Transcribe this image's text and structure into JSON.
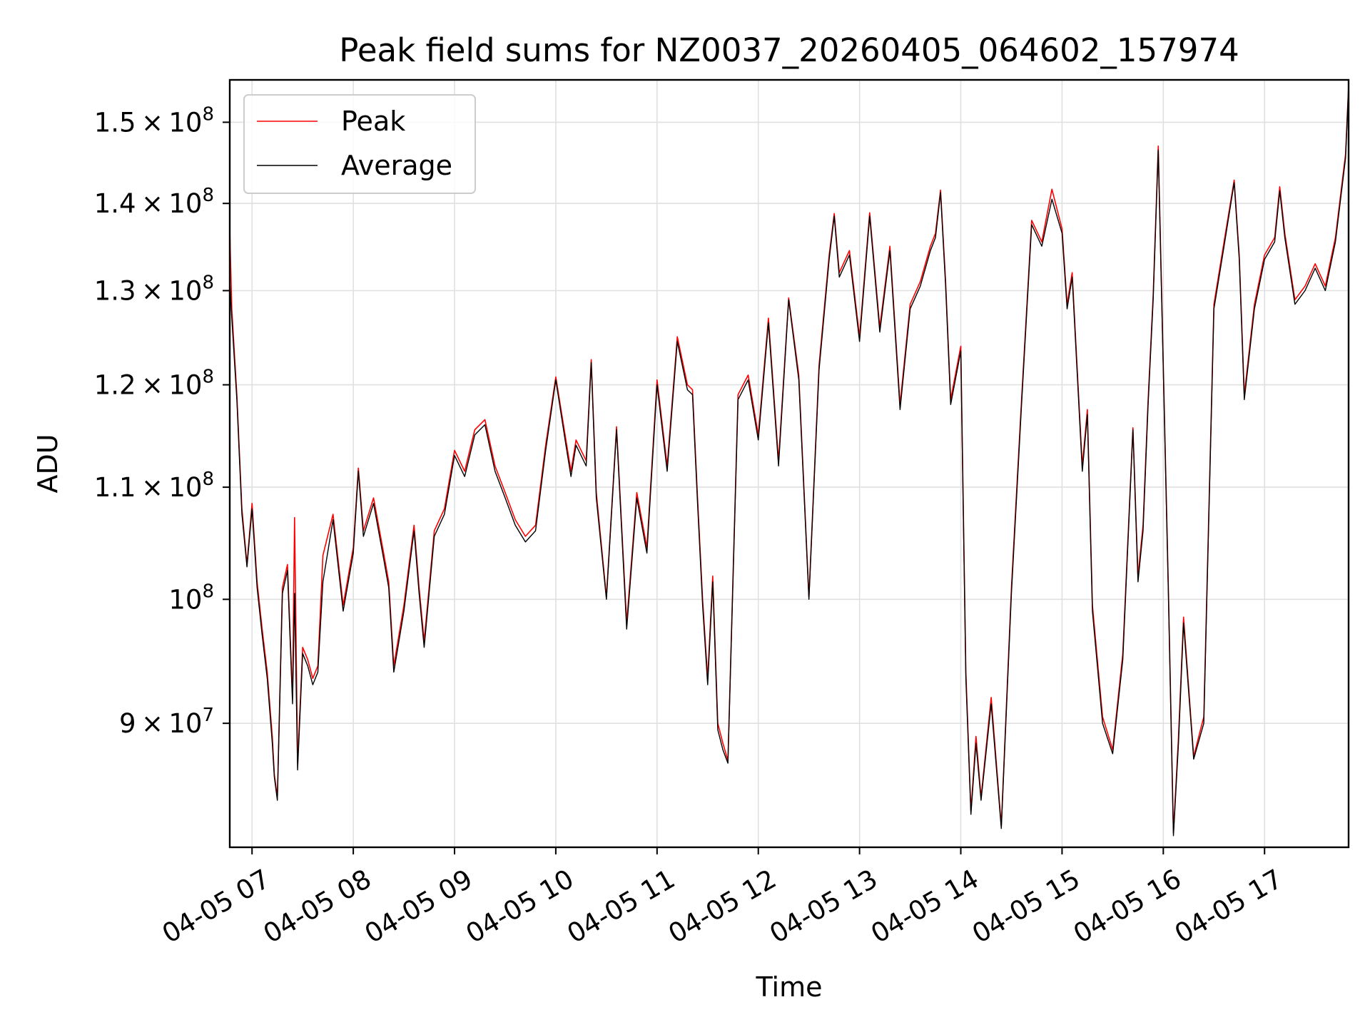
{
  "chart_data": {
    "type": "line",
    "title": "Peak field sums for NZ0037_20260405_064602_157974",
    "xlabel": "Time",
    "ylabel": "ADU",
    "y_scale": "log",
    "x_unit": "hours since 2026-04-05 00:00",
    "xlim": [
      6.78,
      17.83
    ],
    "ylim": [
      81000000,
      155500000
    ],
    "grid": true,
    "legend_position": "upper-left",
    "x_ticks": [
      {
        "value": 7,
        "label": "04-05 07"
      },
      {
        "value": 8,
        "label": "04-05 08"
      },
      {
        "value": 9,
        "label": "04-05 09"
      },
      {
        "value": 10,
        "label": "04-05 10"
      },
      {
        "value": 11,
        "label": "04-05 11"
      },
      {
        "value": 12,
        "label": "04-05 12"
      },
      {
        "value": 13,
        "label": "04-05 13"
      },
      {
        "value": 14,
        "label": "04-05 14"
      },
      {
        "value": 15,
        "label": "04-05 15"
      },
      {
        "value": 16,
        "label": "04-05 16"
      },
      {
        "value": 17,
        "label": "04-05 17"
      }
    ],
    "y_ticks": [
      {
        "value": 90000000,
        "mantissa": "9",
        "exponent": "7"
      },
      {
        "value": 100000000,
        "mantissa": "",
        "exponent": "8"
      },
      {
        "value": 110000000,
        "mantissa": "1.1",
        "exponent": "8"
      },
      {
        "value": 120000000,
        "mantissa": "1.2",
        "exponent": "8"
      },
      {
        "value": 130000000,
        "mantissa": "1.3",
        "exponent": "8"
      },
      {
        "value": 140000000,
        "mantissa": "1.4",
        "exponent": "8"
      },
      {
        "value": 150000000,
        "mantissa": "1.5",
        "exponent": "8"
      }
    ],
    "series": [
      {
        "name": "Peak",
        "color": "#ff0000",
        "x": [
          6.78,
          6.8,
          6.85,
          6.9,
          6.95,
          7.0,
          7.05,
          7.1,
          7.15,
          7.2,
          7.22,
          7.25,
          7.3,
          7.35,
          7.4,
          7.42,
          7.45,
          7.5,
          7.55,
          7.6,
          7.65,
          7.7,
          7.8,
          7.9,
          8.0,
          8.05,
          8.1,
          8.2,
          8.3,
          8.35,
          8.4,
          8.5,
          8.6,
          8.65,
          8.7,
          8.8,
          8.9,
          9.0,
          9.1,
          9.2,
          9.3,
          9.4,
          9.5,
          9.6,
          9.7,
          9.8,
          9.9,
          10.0,
          10.1,
          10.15,
          10.2,
          10.3,
          10.35,
          10.4,
          10.5,
          10.6,
          10.7,
          10.8,
          10.9,
          11.0,
          11.1,
          11.2,
          11.3,
          11.35,
          11.4,
          11.45,
          11.5,
          11.55,
          11.6,
          11.65,
          11.7,
          11.8,
          11.9,
          12.0,
          12.1,
          12.2,
          12.3,
          12.4,
          12.5,
          12.6,
          12.7,
          12.75,
          12.8,
          12.9,
          13.0,
          13.1,
          13.2,
          13.3,
          13.4,
          13.5,
          13.6,
          13.7,
          13.75,
          13.8,
          13.85,
          13.9,
          14.0,
          14.05,
          14.1,
          14.15,
          14.2,
          14.3,
          14.4,
          14.5,
          14.6,
          14.7,
          14.8,
          14.9,
          15.0,
          15.05,
          15.1,
          15.2,
          15.25,
          15.3,
          15.4,
          15.5,
          15.6,
          15.7,
          15.75,
          15.8,
          15.85,
          15.9,
          15.95,
          16.0,
          16.05,
          16.1,
          16.15,
          16.2,
          16.3,
          16.4,
          16.5,
          16.6,
          16.7,
          16.75,
          16.8,
          16.9,
          17.0,
          17.1,
          17.15,
          17.2,
          17.3,
          17.4,
          17.5,
          17.6,
          17.7,
          17.8,
          17.83
        ],
        "y": [
          137000000,
          128000000,
          119000000,
          108000000,
          103000000,
          108500000,
          101500000,
          97500000,
          94000000,
          89000000,
          86200000,
          84500000,
          101000000,
          103000000,
          92000000,
          107200000,
          87000000,
          96000000,
          95000000,
          93500000,
          94500000,
          103800000,
          107500000,
          99500000,
          104500000,
          111800000,
          106000000,
          109000000,
          104000000,
          101500000,
          94500000,
          99500000,
          106500000,
          101000000,
          96500000,
          106000000,
          108000000,
          113500000,
          111500000,
          115500000,
          116500000,
          112000000,
          109500000,
          107000000,
          105500000,
          106500000,
          114000000,
          120800000,
          114500000,
          111500000,
          114500000,
          112500000,
          122600000,
          109500000,
          100200000,
          115800000,
          98000000,
          109500000,
          104500000,
          120500000,
          112000000,
          125000000,
          120000000,
          119500000,
          109000000,
          100000000,
          93500000,
          102000000,
          90000000,
          88500000,
          87200000,
          119000000,
          121000000,
          115000000,
          127000000,
          112500000,
          129200000,
          121000000,
          100200000,
          122000000,
          134000000,
          138800000,
          132000000,
          134500000,
          125000000,
          138900000,
          126000000,
          135000000,
          118000000,
          128500000,
          131000000,
          135000000,
          136500000,
          141600000,
          131000000,
          118500000,
          124000000,
          94000000,
          83500000,
          89000000,
          84500000,
          92000000,
          82500000,
          101000000,
          118500000,
          138000000,
          135500000,
          141700000,
          137000000,
          128500000,
          132000000,
          112000000,
          117500000,
          99500000,
          90500000,
          88000000,
          95500000,
          115700000,
          102000000,
          106500000,
          118500000,
          129500000,
          147000000,
          122000000,
          101000000,
          82000000,
          89000000,
          98500000,
          87500000,
          90500000,
          128500000,
          135500000,
          142800000,
          134000000,
          119000000,
          128500000,
          134000000,
          136000000,
          142000000,
          136500000,
          129000000,
          130500000,
          133000000,
          130500000,
          136000000,
          146000000,
          154700000
        ]
      },
      {
        "name": "Average",
        "color": "#000000",
        "x": [
          6.78,
          6.8,
          6.85,
          6.9,
          6.95,
          7.0,
          7.05,
          7.1,
          7.15,
          7.2,
          7.22,
          7.25,
          7.3,
          7.35,
          7.4,
          7.42,
          7.45,
          7.5,
          7.55,
          7.6,
          7.65,
          7.7,
          7.8,
          7.9,
          8.0,
          8.05,
          8.1,
          8.2,
          8.3,
          8.35,
          8.4,
          8.5,
          8.6,
          8.65,
          8.7,
          8.8,
          8.9,
          9.0,
          9.1,
          9.2,
          9.3,
          9.4,
          9.5,
          9.6,
          9.7,
          9.8,
          9.9,
          10.0,
          10.1,
          10.15,
          10.2,
          10.3,
          10.35,
          10.4,
          10.5,
          10.6,
          10.7,
          10.8,
          10.9,
          11.0,
          11.1,
          11.2,
          11.3,
          11.35,
          11.4,
          11.45,
          11.5,
          11.55,
          11.6,
          11.65,
          11.7,
          11.8,
          11.9,
          12.0,
          12.1,
          12.2,
          12.3,
          12.4,
          12.5,
          12.6,
          12.7,
          12.75,
          12.8,
          12.9,
          13.0,
          13.1,
          13.2,
          13.3,
          13.4,
          13.5,
          13.6,
          13.7,
          13.75,
          13.8,
          13.85,
          13.9,
          14.0,
          14.05,
          14.1,
          14.15,
          14.2,
          14.3,
          14.4,
          14.5,
          14.6,
          14.7,
          14.8,
          14.9,
          15.0,
          15.05,
          15.1,
          15.2,
          15.25,
          15.3,
          15.4,
          15.5,
          15.6,
          15.7,
          15.75,
          15.8,
          15.85,
          15.9,
          15.95,
          16.0,
          16.05,
          16.1,
          16.15,
          16.2,
          16.3,
          16.4,
          16.5,
          16.6,
          16.7,
          16.75,
          16.8,
          16.9,
          17.0,
          17.1,
          17.15,
          17.2,
          17.3,
          17.4,
          17.5,
          17.6,
          17.7,
          17.8,
          17.83
        ],
        "y": [
          131000000,
          127000000,
          118500000,
          107500000,
          102800000,
          108000000,
          101000000,
          97000000,
          93500000,
          88500000,
          86000000,
          84300000,
          100500000,
          102500000,
          91500000,
          100500000,
          86500000,
          95500000,
          94500000,
          93000000,
          94000000,
          101500000,
          107000000,
          99000000,
          104000000,
          111500000,
          105500000,
          108500000,
          103500000,
          101000000,
          94000000,
          99000000,
          106000000,
          100500000,
          96000000,
          105500000,
          107500000,
          113000000,
          111000000,
          115000000,
          116000000,
          111500000,
          109000000,
          106500000,
          105000000,
          106000000,
          113500000,
          120500000,
          114000000,
          111000000,
          114000000,
          112000000,
          122300000,
          109000000,
          100000000,
          115500000,
          97500000,
          109000000,
          104000000,
          120000000,
          111500000,
          124500000,
          119500000,
          119000000,
          108500000,
          99500000,
          93000000,
          101500000,
          89500000,
          88000000,
          87000000,
          118500000,
          120500000,
          114500000,
          126500000,
          112000000,
          129000000,
          120500000,
          100000000,
          121500000,
          133500000,
          138500000,
          131500000,
          134000000,
          124500000,
          138500000,
          125500000,
          134500000,
          117500000,
          128000000,
          130500000,
          134500000,
          136000000,
          141300000,
          130500000,
          118000000,
          123500000,
          93500000,
          83300000,
          88500000,
          84300000,
          91500000,
          82300000,
          100500000,
          118000000,
          137500000,
          135000000,
          140500000,
          136500000,
          128000000,
          131500000,
          111500000,
          117000000,
          99000000,
          90000000,
          87700000,
          95000000,
          115500000,
          101500000,
          106000000,
          118000000,
          129000000,
          146500000,
          121500000,
          100500000,
          81800000,
          88500000,
          98000000,
          87300000,
          90000000,
          128000000,
          135000000,
          142500000,
          133500000,
          118500000,
          128000000,
          133500000,
          135500000,
          141500000,
          136000000,
          128500000,
          130000000,
          132500000,
          130000000,
          135500000,
          145500000,
          154500000
        ]
      }
    ]
  }
}
